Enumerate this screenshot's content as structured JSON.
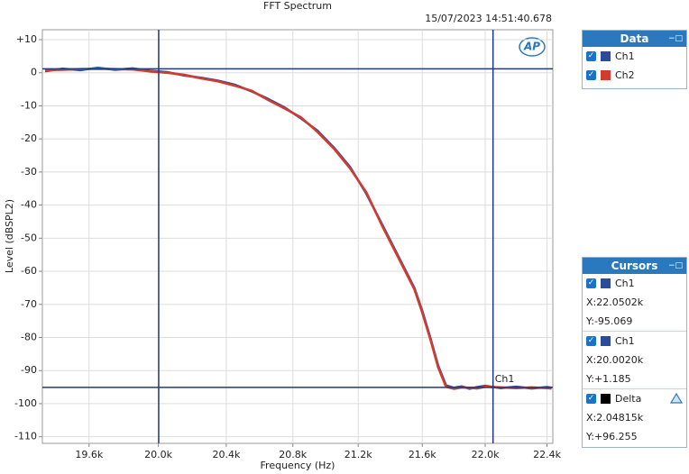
{
  "chart_data": {
    "type": "line",
    "title": "FFT Spectrum",
    "timestamp": "15/07/2023 14:51:40.678",
    "xlabel": "Frequency (Hz)",
    "ylabel": "Level (dBSPL2)",
    "log_x": true,
    "grid": true,
    "xlim": [
      19335,
      22438
    ],
    "ylim": [
      -112,
      13
    ],
    "xticks": [
      {
        "value": 19600,
        "label": "19.6k"
      },
      {
        "value": 20000,
        "label": "20.0k"
      },
      {
        "value": 20400,
        "label": "20.4k"
      },
      {
        "value": 20800,
        "label": "20.8k"
      },
      {
        "value": 21200,
        "label": "21.2k"
      },
      {
        "value": 21600,
        "label": "21.6k"
      },
      {
        "value": 22000,
        "label": "22.0k"
      },
      {
        "value": 22400,
        "label": "22.4k"
      }
    ],
    "yticks": [
      {
        "value": 10,
        "label": "+10"
      },
      0,
      -10,
      -20,
      -30,
      -40,
      -50,
      -60,
      -70,
      -80,
      -90,
      -100,
      -110
    ],
    "x": [
      19350,
      19450,
      19550,
      19650,
      19750,
      19850,
      19950,
      20050,
      20150,
      20250,
      20350,
      20450,
      20550,
      20650,
      20750,
      20850,
      20950,
      21050,
      21150,
      21250,
      21350,
      21450,
      21550,
      21600,
      21650,
      21700,
      21750,
      21800,
      21850,
      21900,
      21950,
      22000,
      22100,
      22200,
      22300,
      22400,
      22430
    ],
    "series": [
      {
        "name": "Ch1",
        "color": "#2d4b9a",
        "values": [
          0.5,
          1.2,
          0.8,
          1.5,
          0.9,
          1.3,
          0.6,
          0.2,
          -0.8,
          -1.5,
          -2.4,
          -3.6,
          -5.6,
          -7.9,
          -10.5,
          -13.8,
          -17.5,
          -22.6,
          -28.5,
          -36.5,
          -46,
          -55.5,
          -65,
          -72,
          -80,
          -88.5,
          -94.5,
          -95.2,
          -94.8,
          -95.5,
          -95,
          -94.6,
          -95.3,
          -94.9,
          -95.4,
          -95,
          -95.2
        ]
      },
      {
        "name": "Ch2",
        "color": "#d23b30",
        "values": [
          0.8,
          0.9,
          1.1,
          1.2,
          1.1,
          1,
          0.4,
          0,
          -0.6,
          -1.7,
          -2.6,
          -3.9,
          -5.4,
          -8.2,
          -10.8,
          -13.5,
          -17.9,
          -22.9,
          -28.9,
          -36.1,
          -46.4,
          -55.9,
          -65.4,
          -72.5,
          -80.4,
          -89,
          -94.9,
          -95.5,
          -95.1,
          -95.2,
          -95.4,
          -94.9,
          -95.1,
          -95.3,
          -95.1,
          -95.3,
          -95.4
        ]
      }
    ],
    "data_panel_title": "Data",
    "cursors_title": "Cursors",
    "cursors": [
      {
        "name": "Ch1",
        "x": 22050.2,
        "x_label": "X:22.0502k",
        "y": -95.069,
        "y_label": "Y:-95.069"
      },
      {
        "name": "Ch1",
        "x": 20002,
        "x_label": "X:20.0020k",
        "y": 1.185,
        "y_label": "Y:+1.185"
      },
      {
        "name": "Delta",
        "x_label": "X:2.04815k",
        "y_label": "Y:+96.255"
      }
    ]
  }
}
